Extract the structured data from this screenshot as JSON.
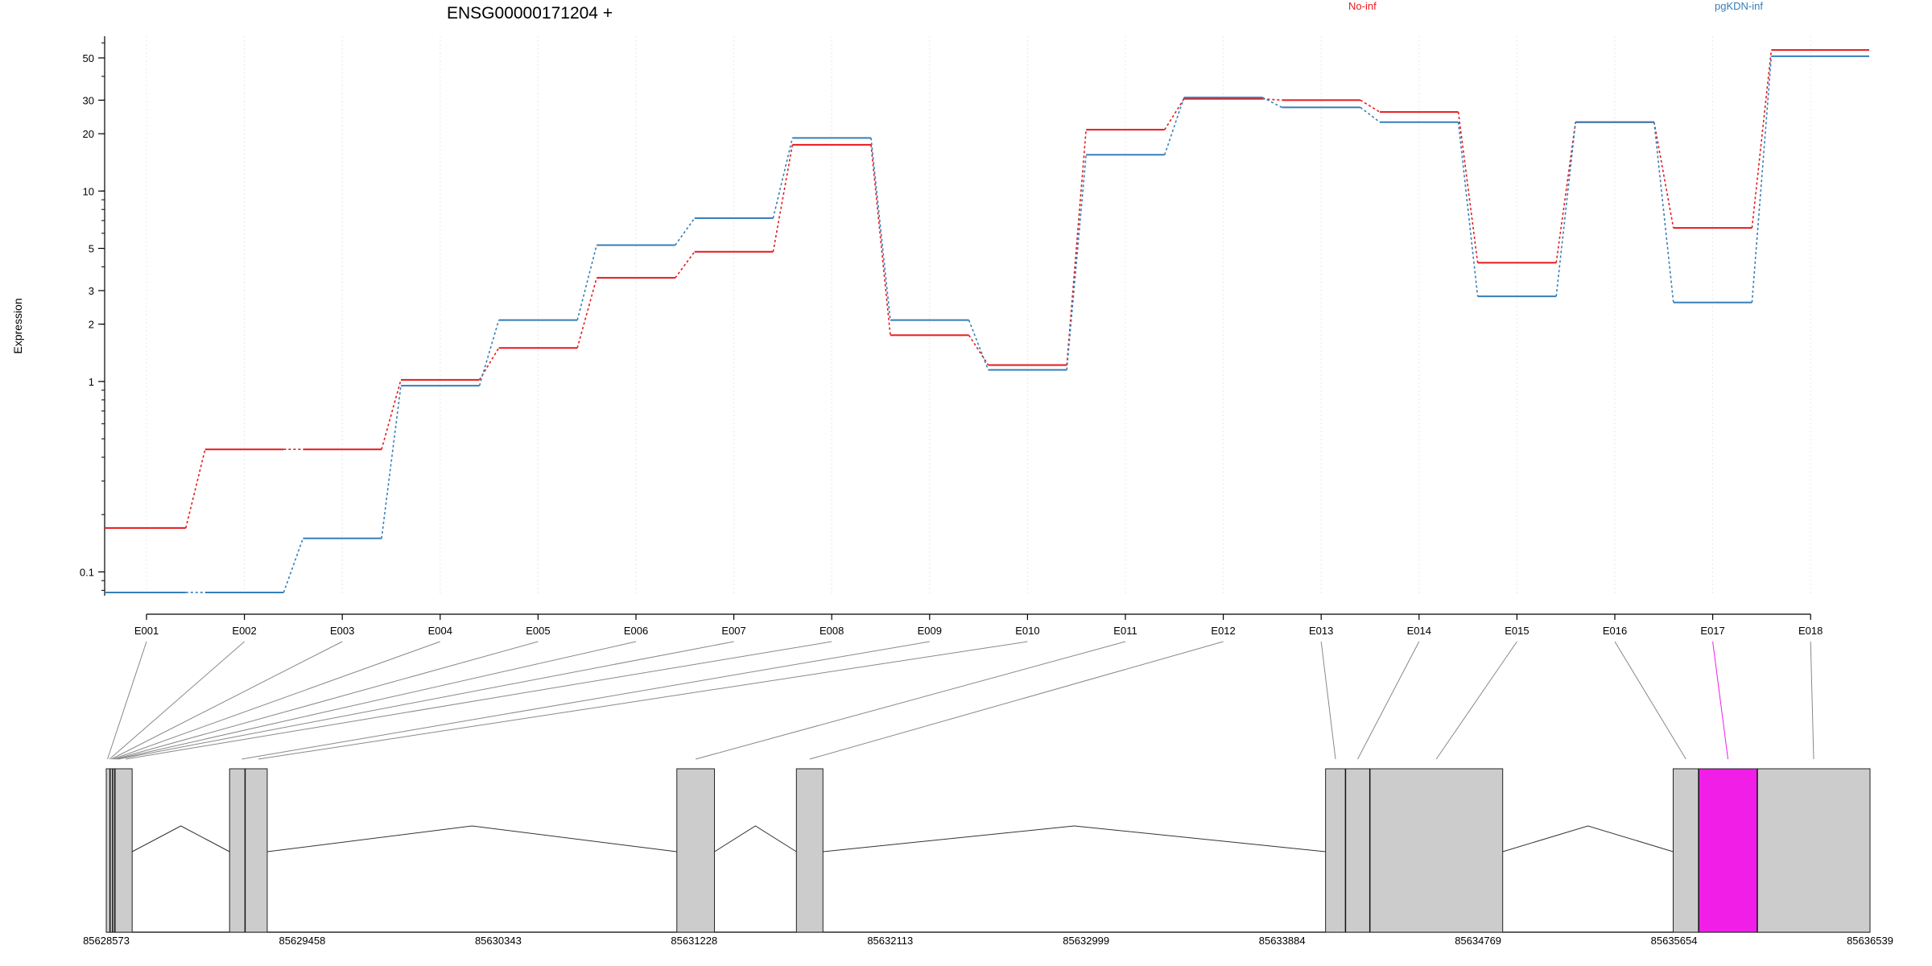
{
  "chart_data": {
    "type": "line",
    "title": "ENSG00000171204 +",
    "ylabel": "Expression",
    "y_scale": "log",
    "ylim": [
      0.075,
      65
    ],
    "y_ticks": [
      0.1,
      1,
      2,
      3,
      5,
      10,
      20,
      30,
      50
    ],
    "y_tick_labels": [
      "0.1",
      "1",
      "2",
      "3",
      "5",
      "10",
      "20",
      "30",
      "50"
    ],
    "grid": "vertical dotted",
    "legend_position": "top",
    "categories": [
      "E001",
      "E002",
      "E003",
      "E004",
      "E005",
      "E006",
      "E007",
      "E008",
      "E009",
      "E010",
      "E011",
      "E012",
      "E013",
      "E014",
      "E015",
      "E016",
      "E017",
      "E018"
    ],
    "series": [
      {
        "name": "No-inf",
        "color": "#e41a1c",
        "values": [
          0.17,
          0.44,
          0.44,
          1.02,
          1.5,
          3.5,
          4.8,
          17.5,
          1.75,
          1.22,
          21.0,
          30.5,
          30.0,
          26.0,
          4.2,
          23.0,
          6.4,
          55.0
        ]
      },
      {
        "name": "pgKDN-inf",
        "color": "#377eb8",
        "values": [
          0.078,
          0.078,
          0.15,
          0.95,
          2.1,
          5.2,
          7.2,
          19.0,
          2.1,
          1.15,
          15.5,
          31.0,
          27.5,
          23.0,
          2.8,
          23.0,
          2.6,
          51.0
        ]
      }
    ],
    "gene_model": {
      "coordinate_labels": [
        "85628573",
        "85629458",
        "85630343",
        "85631228",
        "85632113",
        "85632999",
        "85633884",
        "85634769",
        "85635654",
        "85636539"
      ],
      "coord_range": [
        85628573,
        85636539
      ],
      "exon_bins": [
        {
          "id": "E001",
          "start": 85628573,
          "end": 85628584
        },
        {
          "id": "E002",
          "start": 85628584,
          "end": 85628592
        },
        {
          "id": "E003",
          "start": 85628592,
          "end": 85628600
        },
        {
          "id": "E004",
          "start": 85628600,
          "end": 85628608
        },
        {
          "id": "E005",
          "start": 85628608,
          "end": 85628616
        },
        {
          "id": "E006",
          "start": 85628616,
          "end": 85628624
        },
        {
          "id": "E007",
          "start": 85628624,
          "end": 85628632
        },
        {
          "id": "E008",
          "start": 85628632,
          "end": 85628690
        },
        {
          "id": "E009",
          "start": 85629150,
          "end": 85629220
        },
        {
          "id": "E010",
          "start": 85629220,
          "end": 85629300
        },
        {
          "id": "E011",
          "start": 85631150,
          "end": 85631320
        },
        {
          "id": "E012",
          "start": 85631690,
          "end": 85631810
        },
        {
          "id": "E013",
          "start": 85634080,
          "end": 85634170
        },
        {
          "id": "E014",
          "start": 85634170,
          "end": 85634280
        },
        {
          "id": "E015",
          "start": 85634280,
          "end": 85634880
        },
        {
          "id": "E016",
          "start": 85635650,
          "end": 85635765
        },
        {
          "id": "E017",
          "start": 85635765,
          "end": 85636030,
          "highlight": true,
          "color": "#f01ee6"
        },
        {
          "id": "E018",
          "start": 85636030,
          "end": 85636539
        }
      ],
      "exon_groups": [
        [
          85628573,
          85628690
        ],
        [
          85629130,
          85629300
        ],
        [
          85631150,
          85631320
        ],
        [
          85631690,
          85631810
        ],
        [
          85634080,
          85634880
        ],
        [
          85635650,
          85636539
        ]
      ],
      "boundary_lines": [
        85628590,
        85628602,
        85628612,
        85629200,
        85634170,
        85634280,
        85635765,
        85636030
      ]
    }
  }
}
